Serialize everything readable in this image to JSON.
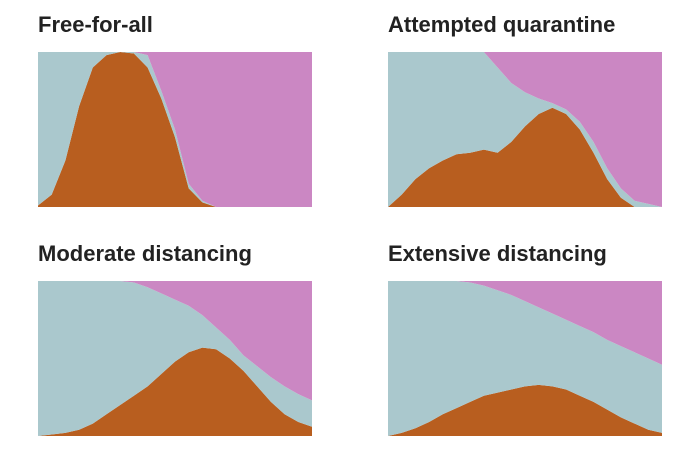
{
  "chart_data": [
    {
      "type": "area",
      "title": "Free-for-all",
      "ylim": [
        0,
        100
      ],
      "categories": [
        null,
        null,
        null,
        null,
        null,
        null,
        null,
        null,
        null,
        null,
        null,
        null,
        null,
        null,
        null,
        null,
        null,
        null,
        null,
        null,
        null
      ],
      "series": [
        {
          "color": "#b85e1f",
          "values": [
            1,
            8,
            30,
            65,
            90,
            98,
            100,
            99,
            90,
            70,
            45,
            12,
            3,
            0,
            0,
            0,
            0,
            0,
            0,
            0,
            0
          ]
        },
        {
          "color": "#aac8cd",
          "values": [
            99,
            92,
            70,
            35,
            10,
            2,
            0,
            1,
            8,
            5,
            5,
            3,
            1,
            0,
            0,
            0,
            0,
            0,
            0,
            0,
            0
          ]
        },
        {
          "color": "#cb87c3",
          "values": [
            0,
            0,
            0,
            0,
            0,
            0,
            0,
            0,
            2,
            25,
            50,
            85,
            96,
            100,
            100,
            100,
            100,
            100,
            100,
            100,
            100
          ]
        }
      ]
    },
    {
      "type": "area",
      "title": "Attempted quarantine",
      "ylim": [
        0,
        100
      ],
      "categories": [
        null,
        null,
        null,
        null,
        null,
        null,
        null,
        null,
        null,
        null,
        null,
        null,
        null,
        null,
        null,
        null,
        null,
        null,
        null,
        null,
        null
      ],
      "series": [
        {
          "color": "#b85e1f",
          "values": [
            0,
            8,
            18,
            25,
            30,
            34,
            35,
            37,
            35,
            42,
            52,
            60,
            64,
            60,
            50,
            35,
            18,
            6,
            0,
            0,
            0
          ]
        },
        {
          "color": "#aac8cd",
          "values": [
            100,
            92,
            82,
            75,
            70,
            66,
            65,
            63,
            55,
            38,
            22,
            10,
            3,
            3,
            5,
            7,
            7,
            6,
            4,
            2,
            0
          ]
        },
        {
          "color": "#cb87c3",
          "values": [
            0,
            0,
            0,
            0,
            0,
            0,
            0,
            0,
            10,
            20,
            26,
            30,
            33,
            37,
            45,
            58,
            75,
            88,
            96,
            98,
            100
          ]
        }
      ]
    },
    {
      "type": "area",
      "title": "Moderate distancing",
      "ylim": [
        0,
        100
      ],
      "categories": [
        null,
        null,
        null,
        null,
        null,
        null,
        null,
        null,
        null,
        null,
        null,
        null,
        null,
        null,
        null,
        null,
        null,
        null,
        null,
        null,
        null
      ],
      "series": [
        {
          "color": "#b85e1f",
          "values": [
            0,
            1,
            2,
            4,
            8,
            14,
            20,
            26,
            32,
            40,
            48,
            54,
            57,
            56,
            50,
            42,
            32,
            22,
            14,
            9,
            6
          ]
        },
        {
          "color": "#aac8cd",
          "values": [
            100,
            99,
            98,
            96,
            92,
            86,
            80,
            73,
            64,
            52,
            40,
            30,
            21,
            14,
            12,
            10,
            13,
            16,
            18,
            18,
            17
          ]
        },
        {
          "color": "#cb87c3",
          "values": [
            0,
            0,
            0,
            0,
            0,
            0,
            0,
            1,
            4,
            8,
            12,
            16,
            22,
            30,
            38,
            48,
            55,
            62,
            68,
            73,
            77
          ]
        }
      ]
    },
    {
      "type": "area",
      "title": "Extensive distancing",
      "ylim": [
        0,
        100
      ],
      "categories": [
        null,
        null,
        null,
        null,
        null,
        null,
        null,
        null,
        null,
        null,
        null,
        null,
        null,
        null,
        null,
        null,
        null,
        null,
        null,
        null,
        null
      ],
      "series": [
        {
          "color": "#b85e1f",
          "values": [
            0,
            2,
            5,
            9,
            14,
            18,
            22,
            26,
            28,
            30,
            32,
            33,
            32,
            30,
            26,
            22,
            17,
            12,
            8,
            4,
            2
          ]
        },
        {
          "color": "#aac8cd",
          "values": [
            100,
            98,
            95,
            91,
            86,
            82,
            77,
            71,
            66,
            61,
            55,
            50,
            47,
            45,
            45,
            45,
            45,
            46,
            46,
            46,
            44
          ]
        },
        {
          "color": "#cb87c3",
          "values": [
            0,
            0,
            0,
            0,
            0,
            0,
            1,
            3,
            6,
            9,
            13,
            17,
            21,
            25,
            29,
            33,
            38,
            42,
            46,
            50,
            54
          ]
        }
      ]
    }
  ]
}
